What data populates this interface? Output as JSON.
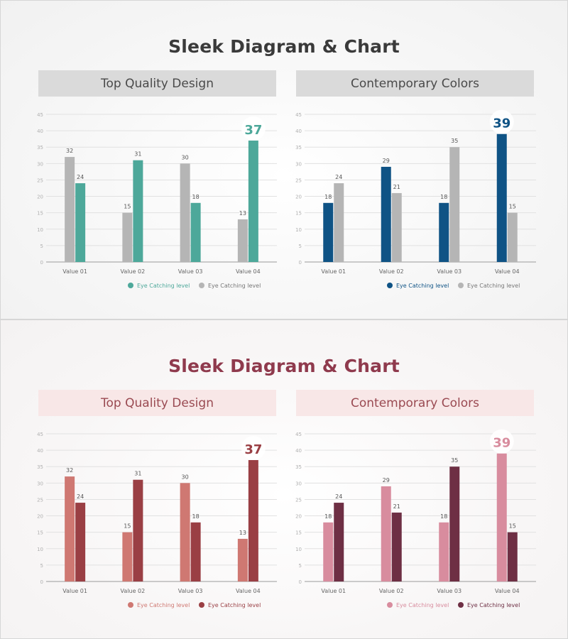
{
  "slides": [
    {
      "title": "Sleek Diagram & Chart",
      "panel_titles": [
        "Top Quality Design",
        "Contemporary Colors"
      ]
    },
    {
      "title": "Sleek Diagram & Chart",
      "panel_titles": [
        "Top Quality Design",
        "Contemporary Colors"
      ]
    }
  ],
  "chart_data": [
    {
      "id": "top-left",
      "type": "bar",
      "title": "Top Quality Design",
      "categories": [
        "Value 01",
        "Value 02",
        "Value 03",
        "Value 04"
      ],
      "series": [
        {
          "name": "Eye Catching level",
          "values": [
            32,
            15,
            30,
            13
          ],
          "color": "#b5b5b5"
        },
        {
          "name": "Eye Catching level",
          "values": [
            24,
            31,
            18,
            37
          ],
          "color": "#4da89a"
        }
      ],
      "legend_order": [
        1,
        0
      ],
      "highlight": {
        "value": 37,
        "color": "#4da89a"
      },
      "ylim": [
        0,
        45
      ],
      "yticks": [
        0,
        5,
        10,
        15,
        20,
        25,
        30,
        35,
        40,
        45
      ],
      "grid": true,
      "legend": "bottom-right"
    },
    {
      "id": "top-right",
      "type": "bar",
      "title": "Contemporary Colors",
      "categories": [
        "Value 01",
        "Value 02",
        "Value 03",
        "Value 04"
      ],
      "series": [
        {
          "name": "Eye Catching level",
          "values": [
            18,
            29,
            18,
            39
          ],
          "color": "#0f5385"
        },
        {
          "name": "Eye Catching level",
          "values": [
            24,
            21,
            35,
            15
          ],
          "color": "#b5b5b5"
        }
      ],
      "legend_order": [
        0,
        1
      ],
      "highlight": {
        "value": 39,
        "color": "#0f5385"
      },
      "ylim": [
        0,
        45
      ],
      "yticks": [
        0,
        5,
        10,
        15,
        20,
        25,
        30,
        35,
        40,
        45
      ],
      "grid": true,
      "legend": "bottom-right"
    },
    {
      "id": "bottom-left",
      "type": "bar",
      "title": "Top Quality Design",
      "categories": [
        "Value 01",
        "Value 02",
        "Value 03",
        "Value 04"
      ],
      "series": [
        {
          "name": "Eye Catching level",
          "values": [
            32,
            15,
            30,
            13
          ],
          "color": "#cf7872"
        },
        {
          "name": "Eye Catching level",
          "values": [
            24,
            31,
            18,
            37
          ],
          "color": "#9a3f44"
        }
      ],
      "legend_order": [
        0,
        1
      ],
      "highlight": {
        "value": 37,
        "color": "#9a3f44"
      },
      "ylim": [
        0,
        45
      ],
      "yticks": [
        0,
        5,
        10,
        15,
        20,
        25,
        30,
        35,
        40,
        45
      ],
      "grid": true,
      "legend": "bottom-right"
    },
    {
      "id": "bottom-right",
      "type": "bar",
      "title": "Contemporary Colors",
      "categories": [
        "Value 01",
        "Value 02",
        "Value 03",
        "Value 04"
      ],
      "series": [
        {
          "name": "Eye Catching level",
          "values": [
            18,
            29,
            18,
            39
          ],
          "color": "#d88c9e"
        },
        {
          "name": "Eye Catching level",
          "values": [
            24,
            21,
            35,
            15
          ],
          "color": "#6e2f44"
        }
      ],
      "legend_order": [
        0,
        1
      ],
      "highlight": {
        "value": 39,
        "color": "#d88c9e"
      },
      "ylim": [
        0,
        45
      ],
      "yticks": [
        0,
        5,
        10,
        15,
        20,
        25,
        30,
        35,
        40,
        45
      ],
      "grid": true,
      "legend": "bottom-right"
    }
  ]
}
